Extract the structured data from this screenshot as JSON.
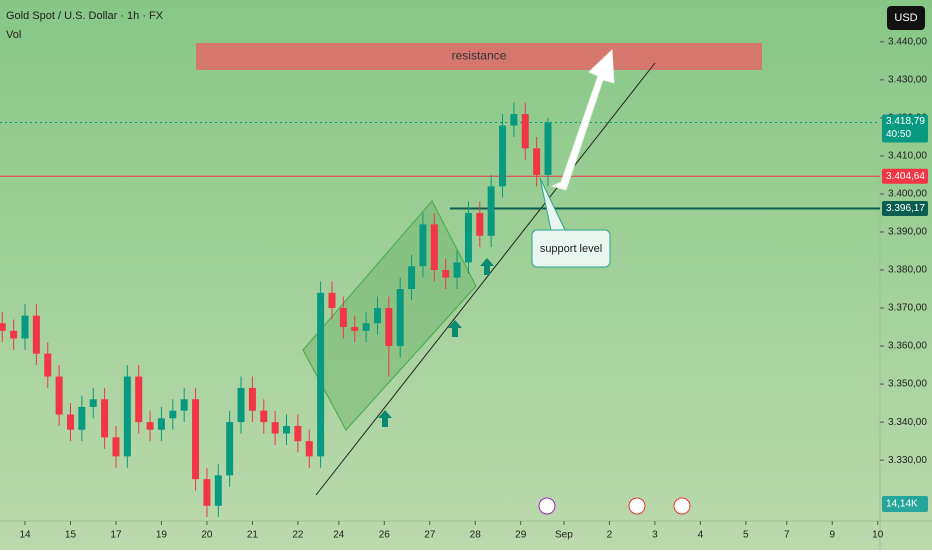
{
  "chart_data": {
    "type": "candlestick",
    "title": "Gold Spot / U.S. Dollar · 1h · FX",
    "volume_title": "Vol",
    "currency": "USD",
    "x": [
      -0.5,
      -0.25,
      0,
      0.25,
      0.5,
      0.75,
      1,
      1.25,
      1.5,
      1.75,
      2,
      2.25,
      2.5,
      2.75,
      3,
      3.25,
      3.5,
      3.75,
      4,
      4.25,
      4.5,
      4.75,
      5,
      5.25,
      5.5,
      5.75,
      6,
      6.25,
      6.5,
      6.75,
      7,
      7.25,
      7.5,
      7.75,
      8,
      8.25,
      8.5,
      8.75,
      9,
      9.25,
      9.5,
      9.75,
      10,
      10.25,
      10.5,
      10.75,
      11,
      11.25,
      11.5
    ],
    "open": [
      3366,
      3364,
      3362,
      3368,
      3358,
      3352,
      3342,
      3338,
      3344,
      3346,
      3336,
      3331,
      3352,
      3340,
      3338,
      3341,
      3343,
      3346,
      3325,
      3318,
      3326,
      3340,
      3349,
      3343,
      3340,
      3337,
      3339,
      3335,
      3331,
      3374,
      3370,
      3365,
      3364,
      3366,
      3370,
      3360,
      3375,
      3381,
      3392,
      3380,
      3378,
      3382,
      3395,
      3389,
      3402,
      3418,
      3421,
      3412,
      3405
    ],
    "high": [
      3369,
      3367,
      3371,
      3371,
      3361,
      3355,
      3345,
      3347,
      3349,
      3349,
      3339,
      3355,
      3355,
      3343,
      3344,
      3346,
      3349,
      3349,
      3328,
      3329,
      3343,
      3352,
      3352,
      3346,
      3343,
      3342,
      3342,
      3338,
      3377,
      3377,
      3373,
      3368,
      3369,
      3373,
      3373,
      3378,
      3384,
      3395,
      3395,
      3383,
      3385,
      3398,
      3398,
      3405,
      3421,
      3424,
      3424,
      3415,
      3420
    ],
    "low": [
      3361,
      3359,
      3359,
      3355,
      3349,
      3339,
      3335,
      3335,
      3341,
      3333,
      3328,
      3328,
      3337,
      3335,
      3335,
      3338,
      3340,
      3322,
      3315,
      3315,
      3323,
      3337,
      3340,
      3337,
      3334,
      3334,
      3332,
      3328,
      3328,
      3367,
      3362,
      3361,
      3361,
      3363,
      3352,
      3357,
      3372,
      3378,
      3377,
      3375,
      3375,
      3379,
      3386,
      3386,
      3399,
      3415,
      3409,
      3402,
      3402
    ],
    "close": [
      3364,
      3362,
      3368,
      3358,
      3352,
      3342,
      3338,
      3344,
      3346,
      3336,
      3331,
      3352,
      3340,
      3338,
      3341,
      3343,
      3346,
      3325,
      3318,
      3326,
      3340,
      3349,
      3343,
      3340,
      3337,
      3339,
      3335,
      3331,
      3374,
      3370,
      3365,
      3364,
      3366,
      3370,
      3360,
      3375,
      3381,
      3392,
      3380,
      3378,
      3382,
      3395,
      3389,
      3402,
      3418,
      3421,
      3412,
      3405,
      3418.79
    ],
    "up_color": "#089981",
    "down_color": "#f23645",
    "xlim": [
      -0.55,
      18.8
    ],
    "xticks": [
      {
        "value": 0,
        "label": "14"
      },
      {
        "value": 1,
        "label": "15"
      },
      {
        "value": 2,
        "label": "17"
      },
      {
        "value": 3,
        "label": "19"
      },
      {
        "value": 4,
        "label": "20"
      },
      {
        "value": 5,
        "label": "21"
      },
      {
        "value": 6,
        "label": "22"
      },
      {
        "value": 6.9,
        "label": "24"
      },
      {
        "value": 7.9,
        "label": "26"
      },
      {
        "value": 8.9,
        "label": "27"
      },
      {
        "value": 9.9,
        "label": "28"
      },
      {
        "value": 10.9,
        "label": "29"
      },
      {
        "value": 11.85,
        "label": "Sep"
      },
      {
        "value": 12.85,
        "label": "2"
      },
      {
        "value": 13.85,
        "label": "3"
      },
      {
        "value": 14.85,
        "label": "4"
      },
      {
        "value": 15.85,
        "label": "5"
      },
      {
        "value": 16.75,
        "label": "7"
      },
      {
        "value": 17.75,
        "label": "9"
      },
      {
        "value": 18.75,
        "label": "10"
      }
    ],
    "ylim": [
      3314,
      3451
    ],
    "yticks": [
      {
        "value": 3330,
        "label": "3.330,00"
      },
      {
        "value": 3340,
        "label": "3.340,00"
      },
      {
        "value": 3350,
        "label": "3.350,00"
      },
      {
        "value": 3360,
        "label": "3.360,00"
      },
      {
        "value": 3370,
        "label": "3.370,00"
      },
      {
        "value": 3380,
        "label": "3.380,00"
      },
      {
        "value": 3390,
        "label": "3.390,00"
      },
      {
        "value": 3400,
        "label": "3.400,00"
      },
      {
        "value": 3410,
        "label": "3.410,00"
      },
      {
        "value": 3420,
        "label": "3.420,00"
      },
      {
        "value": 3430,
        "label": "3.430,00"
      },
      {
        "value": 3440,
        "label": "3.440,00"
      }
    ],
    "price_lines": {
      "values": [
        3418.79,
        3404.64,
        3396.17
      ],
      "value_labels": [
        "3.418,79",
        "3.404,64",
        "3.396,17"
      ],
      "colors": [
        "#089981",
        "#f23645",
        "#0b5e4f"
      ]
    },
    "countdown": "40:50",
    "resistance": {
      "label": "resistance",
      "range": [
        3432.6,
        3439.7
      ]
    },
    "support_label": "support level",
    "volume_label": "14,14K"
  }
}
